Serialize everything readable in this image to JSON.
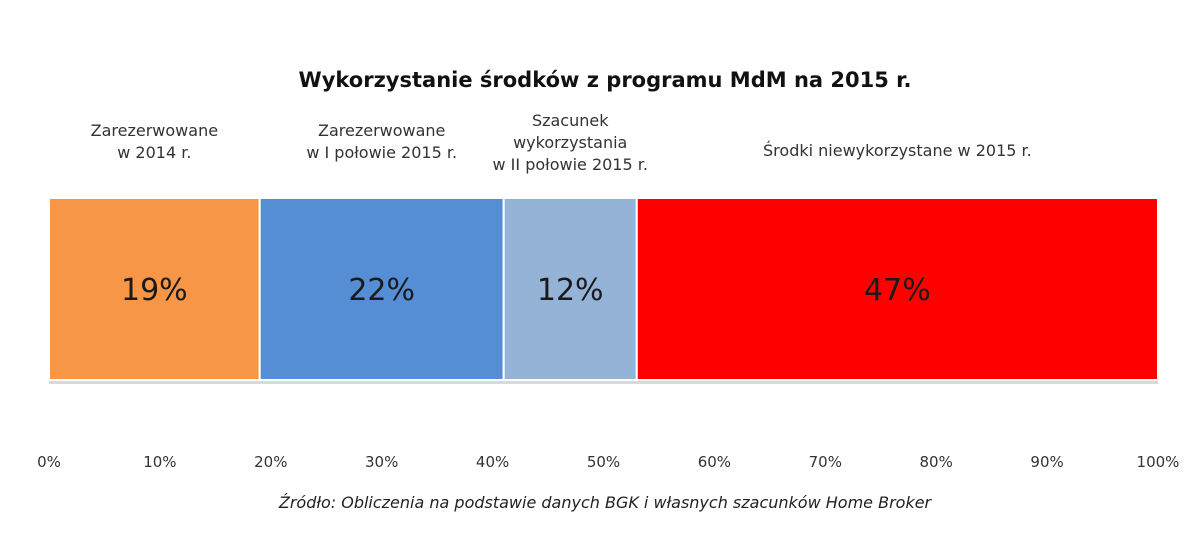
{
  "chart_data": {
    "type": "bar",
    "orientation": "horizontal-stacked-100",
    "title": "Wykorzystanie środków z programu MdM na 2015 r.",
    "series": [
      {
        "name": "Zarezerwowane w 2014 r.",
        "label_lines": [
          "Zarezerwowane",
          "w 2014 r."
        ],
        "value": 19,
        "data_label": "19%",
        "color": "#f79646"
      },
      {
        "name": "Zarezerwowane w I połowie 2015 r.",
        "label_lines": [
          "Zarezerwowane",
          "w I połowie 2015 r."
        ],
        "value": 22,
        "data_label": "22%",
        "color": "#558ed5"
      },
      {
        "name": "Szacunek wykorzystania w II połowie 2015 r.",
        "label_lines": [
          "Szacunek",
          "wykorzystania",
          "w II połowie 2015 r."
        ],
        "value": 12,
        "data_label": "12%",
        "color": "#95b3d7"
      },
      {
        "name": "Środki niewykorzystane w 2015 r.",
        "label_lines": [
          "Środki niewykorzystane w 2015 r."
        ],
        "value": 47,
        "data_label": "47%",
        "color": "#ff0000"
      }
    ],
    "x_ticks": [
      "0%",
      "10%",
      "20%",
      "30%",
      "40%",
      "50%",
      "60%",
      "70%",
      "80%",
      "90%",
      "100%"
    ],
    "xlim": [
      0,
      100
    ],
    "grid": false,
    "source": "Źródło: Obliczenia na podstawie danych BGK i własnych szacunków Home Broker"
  }
}
